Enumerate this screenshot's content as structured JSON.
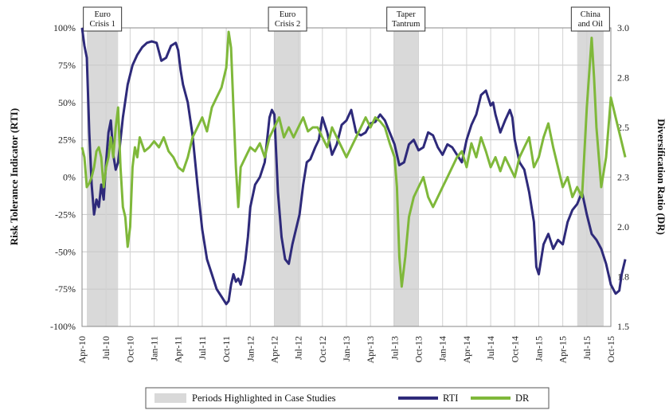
{
  "chart_data": {
    "type": "line",
    "title": "",
    "ylabel_left": "Risk Tolerance Indicator (RTI)",
    "ylabel_right": "Diversification Ratio (DR)",
    "left_ticks": [
      "100%",
      "75%",
      "50%",
      "25%",
      "0%",
      "-25%",
      "-50%",
      "-75%",
      "-100%"
    ],
    "left_ylim": [
      -100,
      100
    ],
    "right_ticks": [
      "3.0",
      "2.8",
      "2.5",
      "2.3",
      "2.0",
      "1.8",
      "1.5"
    ],
    "right_ylim": [
      1.5,
      3.0
    ],
    "x_ticks": [
      "Apr-10",
      "Jul-10",
      "Oct-10",
      "Jan-11",
      "Apr-11",
      "Jul-11",
      "Oct-11",
      "Jan-12",
      "Apr-12",
      "Jul-12",
      "Oct-12",
      "Jan-13",
      "Apr-13",
      "Jul-13",
      "Oct-13",
      "Jan-14",
      "Apr-14",
      "Jul-14",
      "Oct-14",
      "Jan-15",
      "Apr-15",
      "Jul-15",
      "Oct-15"
    ],
    "grid": true,
    "legend_position": "bottom",
    "colors": {
      "rti": "#2e2a7a",
      "dr": "#7fb83a",
      "shade": "#d9d9d9"
    },
    "periods": [
      {
        "label": [
          "Euro",
          "Crisis 1"
        ],
        "start": 0.2,
        "end": 1.5
      },
      {
        "label": [
          "Euro",
          "Crisis 2"
        ],
        "start": 8.0,
        "end": 9.1
      },
      {
        "label": [
          "Taper",
          "Tantrum"
        ],
        "start": 12.95,
        "end": 14.0
      },
      {
        "label": [
          "China",
          "and Oil"
        ],
        "start": 20.6,
        "end": 21.7
      }
    ],
    "series": [
      {
        "name": "RTI",
        "axis": "left",
        "points": [
          [
            0,
            100
          ],
          [
            0.1,
            88
          ],
          [
            0.2,
            80
          ],
          [
            0.3,
            30
          ],
          [
            0.4,
            -5
          ],
          [
            0.5,
            -25
          ],
          [
            0.6,
            -15
          ],
          [
            0.7,
            -20
          ],
          [
            0.8,
            -5
          ],
          [
            0.9,
            -15
          ],
          [
            1.0,
            10
          ],
          [
            1.1,
            30
          ],
          [
            1.2,
            38
          ],
          [
            1.3,
            15
          ],
          [
            1.4,
            5
          ],
          [
            1.5,
            10
          ],
          [
            1.7,
            40
          ],
          [
            1.9,
            62
          ],
          [
            2.1,
            75
          ],
          [
            2.3,
            82
          ],
          [
            2.5,
            87
          ],
          [
            2.7,
            90
          ],
          [
            2.9,
            91
          ],
          [
            3.1,
            90
          ],
          [
            3.3,
            78
          ],
          [
            3.5,
            80
          ],
          [
            3.7,
            88
          ],
          [
            3.9,
            90
          ],
          [
            4.0,
            85
          ],
          [
            4.1,
            72
          ],
          [
            4.2,
            62
          ],
          [
            4.4,
            50
          ],
          [
            4.6,
            28
          ],
          [
            4.8,
            -5
          ],
          [
            5.0,
            -35
          ],
          [
            5.2,
            -55
          ],
          [
            5.4,
            -65
          ],
          [
            5.6,
            -75
          ],
          [
            5.8,
            -80
          ],
          [
            6.0,
            -85
          ],
          [
            6.1,
            -83
          ],
          [
            6.2,
            -72
          ],
          [
            6.3,
            -65
          ],
          [
            6.4,
            -70
          ],
          [
            6.5,
            -68
          ],
          [
            6.6,
            -72
          ],
          [
            6.7,
            -65
          ],
          [
            6.8,
            -55
          ],
          [
            6.9,
            -40
          ],
          [
            7.0,
            -20
          ],
          [
            7.2,
            -5
          ],
          [
            7.4,
            0
          ],
          [
            7.6,
            10
          ],
          [
            7.7,
            25
          ],
          [
            7.8,
            40
          ],
          [
            7.9,
            45
          ],
          [
            8.0,
            42
          ],
          [
            8.05,
            25
          ],
          [
            8.15,
            -10
          ],
          [
            8.3,
            -40
          ],
          [
            8.45,
            -55
          ],
          [
            8.6,
            -58
          ],
          [
            8.75,
            -45
          ],
          [
            8.9,
            -35
          ],
          [
            9.05,
            -25
          ],
          [
            9.2,
            -5
          ],
          [
            9.35,
            10
          ],
          [
            9.5,
            12
          ],
          [
            9.7,
            20
          ],
          [
            9.85,
            25
          ],
          [
            10.0,
            40
          ],
          [
            10.2,
            30
          ],
          [
            10.4,
            15
          ],
          [
            10.6,
            22
          ],
          [
            10.8,
            35
          ],
          [
            11.0,
            38
          ],
          [
            11.2,
            45
          ],
          [
            11.4,
            30
          ],
          [
            11.6,
            28
          ],
          [
            11.8,
            30
          ],
          [
            12.0,
            36
          ],
          [
            12.2,
            37
          ],
          [
            12.4,
            42
          ],
          [
            12.6,
            38
          ],
          [
            12.8,
            30
          ],
          [
            13.0,
            22
          ],
          [
            13.2,
            8
          ],
          [
            13.4,
            10
          ],
          [
            13.6,
            22
          ],
          [
            13.8,
            25
          ],
          [
            14.0,
            18
          ],
          [
            14.2,
            20
          ],
          [
            14.4,
            30
          ],
          [
            14.6,
            28
          ],
          [
            14.8,
            20
          ],
          [
            15.0,
            15
          ],
          [
            15.2,
            22
          ],
          [
            15.4,
            20
          ],
          [
            15.6,
            15
          ],
          [
            15.8,
            10
          ],
          [
            16.0,
            25
          ],
          [
            16.2,
            35
          ],
          [
            16.4,
            42
          ],
          [
            16.6,
            55
          ],
          [
            16.8,
            58
          ],
          [
            17.0,
            48
          ],
          [
            17.1,
            50
          ],
          [
            17.2,
            42
          ],
          [
            17.4,
            30
          ],
          [
            17.6,
            38
          ],
          [
            17.8,
            45
          ],
          [
            17.9,
            40
          ],
          [
            18.0,
            25
          ],
          [
            18.2,
            10
          ],
          [
            18.4,
            5
          ],
          [
            18.6,
            -10
          ],
          [
            18.8,
            -30
          ],
          [
            18.9,
            -60
          ],
          [
            19.0,
            -65
          ],
          [
            19.2,
            -45
          ],
          [
            19.4,
            -38
          ],
          [
            19.6,
            -48
          ],
          [
            19.8,
            -42
          ],
          [
            20.0,
            -45
          ],
          [
            20.2,
            -30
          ],
          [
            20.4,
            -22
          ],
          [
            20.6,
            -18
          ],
          [
            20.8,
            -10
          ],
          [
            21.0,
            -25
          ],
          [
            21.2,
            -38
          ],
          [
            21.4,
            -42
          ],
          [
            21.6,
            -48
          ],
          [
            21.8,
            -58
          ],
          [
            22.0,
            -72
          ],
          [
            22.2,
            -78
          ],
          [
            22.35,
            -76
          ],
          [
            22.45,
            -65
          ],
          [
            22.6,
            -55
          ]
        ]
      },
      {
        "name": "DR",
        "axis": "right",
        "points": [
          [
            0,
            2.4
          ],
          [
            0.1,
            2.35
          ],
          [
            0.2,
            2.2
          ],
          [
            0.3,
            2.22
          ],
          [
            0.4,
            2.25
          ],
          [
            0.5,
            2.3
          ],
          [
            0.6,
            2.38
          ],
          [
            0.7,
            2.4
          ],
          [
            0.8,
            2.35
          ],
          [
            0.9,
            2.2
          ],
          [
            1.0,
            2.3
          ],
          [
            1.1,
            2.35
          ],
          [
            1.2,
            2.45
          ],
          [
            1.3,
            2.35
          ],
          [
            1.4,
            2.5
          ],
          [
            1.5,
            2.6
          ],
          [
            1.6,
            2.3
          ],
          [
            1.7,
            2.1
          ],
          [
            1.8,
            2.05
          ],
          [
            1.9,
            1.9
          ],
          [
            2.0,
            2.0
          ],
          [
            2.1,
            2.3
          ],
          [
            2.2,
            2.4
          ],
          [
            2.3,
            2.35
          ],
          [
            2.4,
            2.45
          ],
          [
            2.6,
            2.38
          ],
          [
            2.8,
            2.4
          ],
          [
            3.0,
            2.43
          ],
          [
            3.2,
            2.4
          ],
          [
            3.4,
            2.45
          ],
          [
            3.6,
            2.38
          ],
          [
            3.8,
            2.35
          ],
          [
            4.0,
            2.3
          ],
          [
            4.2,
            2.28
          ],
          [
            4.4,
            2.35
          ],
          [
            4.6,
            2.45
          ],
          [
            4.8,
            2.5
          ],
          [
            5.0,
            2.55
          ],
          [
            5.2,
            2.48
          ],
          [
            5.4,
            2.6
          ],
          [
            5.6,
            2.65
          ],
          [
            5.8,
            2.7
          ],
          [
            6.0,
            2.8
          ],
          [
            6.1,
            2.98
          ],
          [
            6.2,
            2.9
          ],
          [
            6.3,
            2.6
          ],
          [
            6.4,
            2.3
          ],
          [
            6.5,
            2.1
          ],
          [
            6.6,
            2.3
          ],
          [
            6.8,
            2.35
          ],
          [
            7.0,
            2.4
          ],
          [
            7.2,
            2.38
          ],
          [
            7.4,
            2.42
          ],
          [
            7.6,
            2.35
          ],
          [
            7.8,
            2.45
          ],
          [
            8.0,
            2.5
          ],
          [
            8.2,
            2.55
          ],
          [
            8.4,
            2.45
          ],
          [
            8.6,
            2.5
          ],
          [
            8.8,
            2.45
          ],
          [
            9.0,
            2.5
          ],
          [
            9.2,
            2.55
          ],
          [
            9.4,
            2.48
          ],
          [
            9.6,
            2.5
          ],
          [
            9.8,
            2.5
          ],
          [
            10.0,
            2.45
          ],
          [
            10.2,
            2.4
          ],
          [
            10.4,
            2.5
          ],
          [
            10.6,
            2.45
          ],
          [
            10.8,
            2.4
          ],
          [
            11.0,
            2.35
          ],
          [
            11.2,
            2.4
          ],
          [
            11.4,
            2.45
          ],
          [
            11.6,
            2.5
          ],
          [
            11.8,
            2.55
          ],
          [
            12.0,
            2.5
          ],
          [
            12.2,
            2.55
          ],
          [
            12.4,
            2.53
          ],
          [
            12.6,
            2.5
          ],
          [
            12.8,
            2.42
          ],
          [
            13.0,
            2.35
          ],
          [
            13.1,
            2.2
          ],
          [
            13.2,
            1.85
          ],
          [
            13.3,
            1.7
          ],
          [
            13.45,
            1.85
          ],
          [
            13.6,
            2.05
          ],
          [
            13.8,
            2.15
          ],
          [
            14.0,
            2.2
          ],
          [
            14.2,
            2.25
          ],
          [
            14.4,
            2.15
          ],
          [
            14.6,
            2.1
          ],
          [
            14.8,
            2.15
          ],
          [
            15.0,
            2.2
          ],
          [
            15.2,
            2.25
          ],
          [
            15.4,
            2.3
          ],
          [
            15.6,
            2.35
          ],
          [
            15.8,
            2.38
          ],
          [
            16.0,
            2.3
          ],
          [
            16.2,
            2.42
          ],
          [
            16.4,
            2.35
          ],
          [
            16.6,
            2.45
          ],
          [
            16.8,
            2.38
          ],
          [
            17.0,
            2.3
          ],
          [
            17.2,
            2.35
          ],
          [
            17.4,
            2.28
          ],
          [
            17.6,
            2.35
          ],
          [
            17.8,
            2.3
          ],
          [
            18.0,
            2.25
          ],
          [
            18.2,
            2.35
          ],
          [
            18.4,
            2.4
          ],
          [
            18.6,
            2.45
          ],
          [
            18.8,
            2.3
          ],
          [
            19.0,
            2.35
          ],
          [
            19.2,
            2.45
          ],
          [
            19.4,
            2.52
          ],
          [
            19.6,
            2.4
          ],
          [
            19.8,
            2.3
          ],
          [
            20.0,
            2.2
          ],
          [
            20.2,
            2.25
          ],
          [
            20.4,
            2.15
          ],
          [
            20.6,
            2.2
          ],
          [
            20.8,
            2.15
          ],
          [
            21.0,
            2.6
          ],
          [
            21.2,
            2.95
          ],
          [
            21.3,
            2.75
          ],
          [
            21.4,
            2.5
          ],
          [
            21.6,
            2.2
          ],
          [
            21.8,
            2.35
          ],
          [
            22.0,
            2.65
          ],
          [
            22.2,
            2.55
          ],
          [
            22.4,
            2.45
          ],
          [
            22.6,
            2.35
          ]
        ]
      }
    ]
  },
  "legend": {
    "shade_label": "Periods Highlighted in Case Studies",
    "rti_label": "RTI",
    "dr_label": "DR"
  }
}
